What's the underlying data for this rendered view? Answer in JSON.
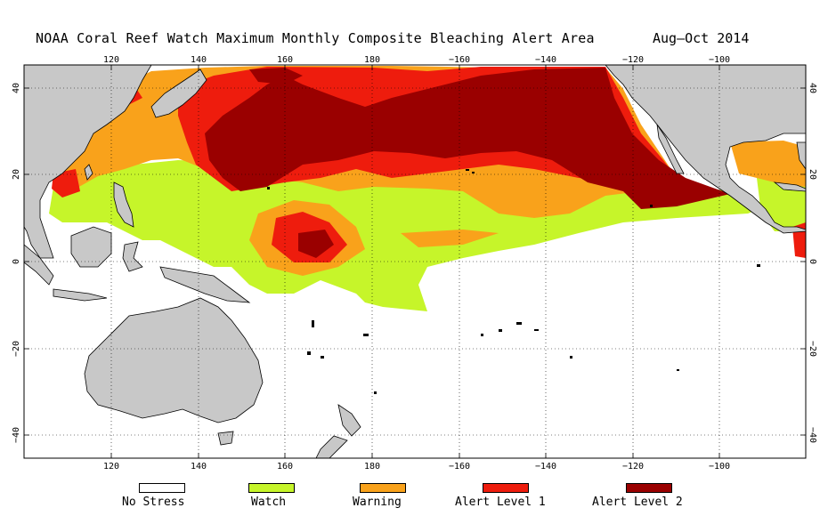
{
  "header": {
    "title": "NOAA Coral Reef Watch Maximum Monthly Composite Bleaching Alert Area",
    "period": "Aug–Oct 2014"
  },
  "colors": {
    "land": "#c8c8c8",
    "ocean_no_stress": "#ffffff",
    "watch": "#c6f52a",
    "warning": "#f9a21b",
    "alert1": "#ee1c0d",
    "alert2": "#9a0000",
    "coast": "#000000"
  },
  "map": {
    "lon_range": [
      100,
      282
    ],
    "lat_range": [
      -45,
      45
    ],
    "x_ticks": [
      "120",
      "140",
      "160",
      "180",
      "−160",
      "−140",
      "−120",
      "−100"
    ],
    "y_ticks_left": [
      "40",
      "20",
      "0",
      "−20",
      "−40"
    ],
    "y_ticks_right": [
      "40",
      "20",
      "0",
      "−20",
      "−40"
    ],
    "grid": "dotted"
  },
  "legend": {
    "items": [
      {
        "label": "No Stress",
        "color": "#ffffff"
      },
      {
        "label": "Watch",
        "color": "#c6f52a"
      },
      {
        "label": "Warning",
        "color": "#f9a21b"
      },
      {
        "label": "Alert Level 1",
        "color": "#ee1c0d"
      },
      {
        "label": "Alert Level 2",
        "color": "#9a0000"
      }
    ]
  }
}
